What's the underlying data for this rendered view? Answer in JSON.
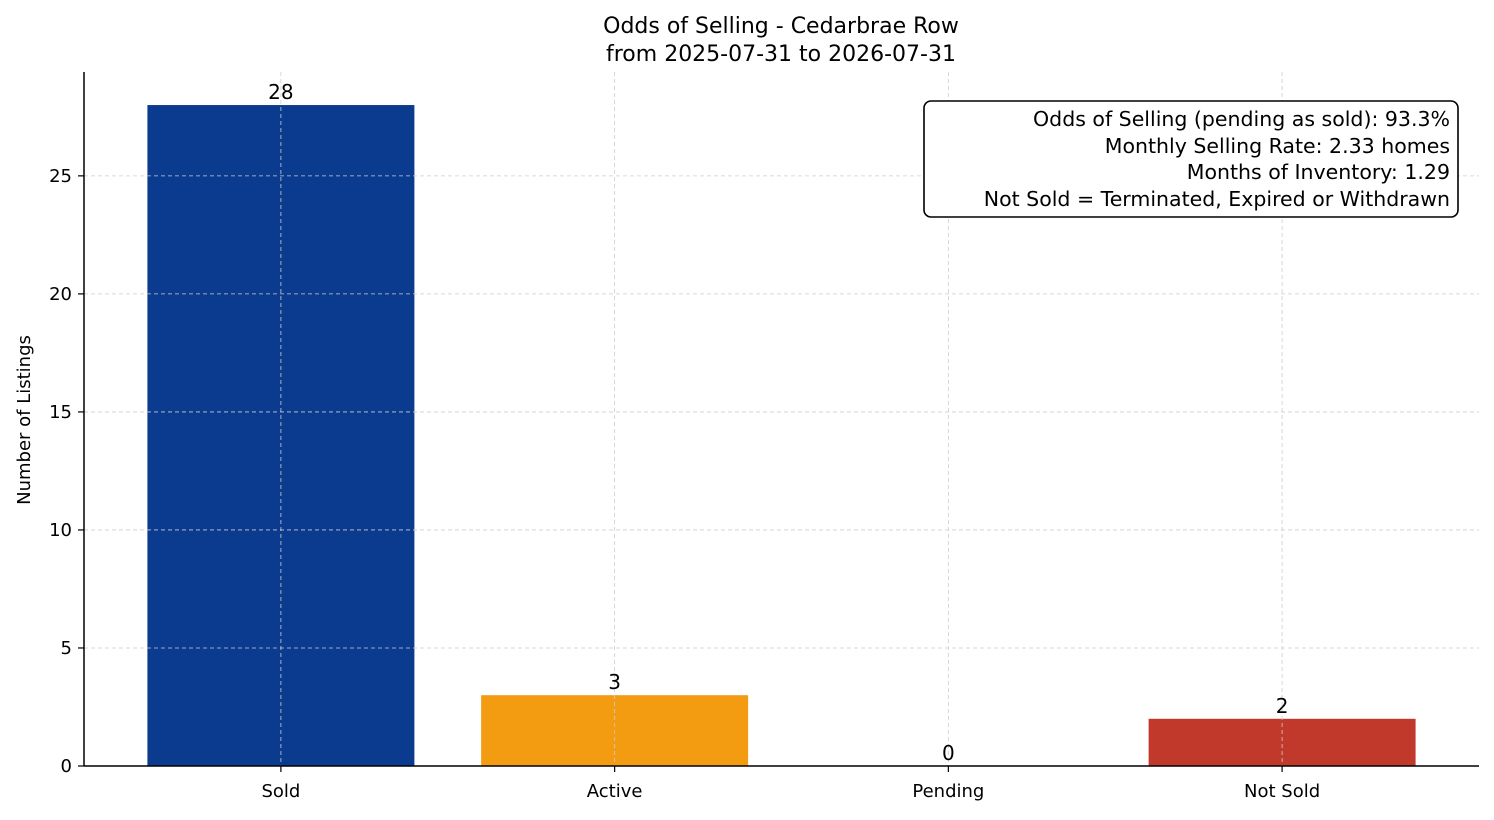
{
  "chart_data": {
    "type": "bar",
    "title_lines": [
      "Odds of Selling - Cedarbrae Row",
      "from 2025-07-31 to 2026-07-31"
    ],
    "xlabel": "",
    "ylabel": "Number of Listings",
    "categories": [
      "Sold",
      "Active",
      "Pending",
      "Not Sold"
    ],
    "values": [
      28,
      3,
      0,
      2
    ],
    "value_labels": [
      "28",
      "3",
      "0",
      "2"
    ],
    "colors": [
      "#0b3b8f",
      "#f39c12",
      "#7f8c8d",
      "#c0392b"
    ],
    "ylim": [
      0,
      29.4
    ],
    "yticks": [
      0,
      5,
      10,
      15,
      20,
      25
    ],
    "ytick_labels": [
      "0",
      "5",
      "10",
      "15",
      "20",
      "25"
    ],
    "grid": true,
    "annotation_lines": [
      "Odds of Selling (pending as sold): 93.3%",
      "Monthly Selling Rate: 2.33 homes",
      "Months of Inventory: 1.29",
      "Not Sold = Terminated, Expired or Withdrawn"
    ],
    "annotation_position": "top-right"
  }
}
